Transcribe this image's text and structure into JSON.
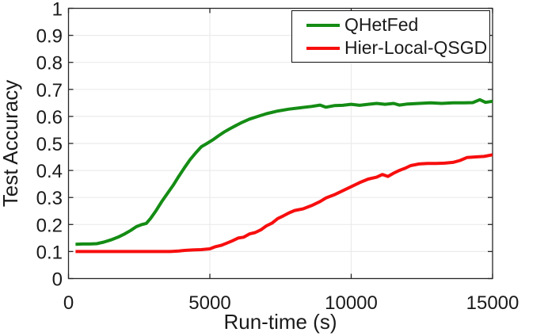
{
  "figure": {
    "background": "#ffffff",
    "axis_color": "#262626",
    "grid_color": "#ebebeb",
    "text_color": "#1a1a1a"
  },
  "chart_data": {
    "type": "line",
    "title": "",
    "xlabel": "Run-time (s)",
    "ylabel": "Test Accuracy",
    "xlim": [
      0,
      15000
    ],
    "ylim": [
      0,
      1
    ],
    "xticks": [
      0,
      5000,
      10000,
      15000
    ],
    "yticks": [
      0,
      0.1,
      0.2,
      0.3,
      0.4,
      0.5,
      0.6,
      0.7,
      0.8,
      0.9,
      1
    ],
    "grid": true,
    "legend_position": "northeast",
    "series": [
      {
        "name": "QHetFed",
        "color": "#148c14",
        "x": [
          250,
          500,
          750,
          1000,
          1250,
          1500,
          1750,
          2000,
          2200,
          2400,
          2600,
          2750,
          2900,
          3100,
          3300,
          3500,
          3700,
          3900,
          4100,
          4300,
          4500,
          4700,
          4900,
          5100,
          5300,
          5500,
          5700,
          5900,
          6100,
          6400,
          6700,
          7000,
          7400,
          7800,
          8200,
          8600,
          8900,
          9100,
          9400,
          9700,
          10000,
          10300,
          10600,
          10900,
          11200,
          11500,
          11700,
          12000,
          12400,
          12800,
          13200,
          13600,
          14000,
          14300,
          14550,
          14750,
          15000
        ],
        "y": [
          0.127,
          0.128,
          0.128,
          0.129,
          0.135,
          0.143,
          0.153,
          0.166,
          0.178,
          0.192,
          0.2,
          0.204,
          0.222,
          0.252,
          0.285,
          0.315,
          0.345,
          0.378,
          0.41,
          0.44,
          0.465,
          0.488,
          0.5,
          0.513,
          0.528,
          0.542,
          0.554,
          0.565,
          0.576,
          0.59,
          0.6,
          0.61,
          0.62,
          0.627,
          0.632,
          0.637,
          0.642,
          0.634,
          0.64,
          0.641,
          0.645,
          0.641,
          0.645,
          0.648,
          0.645,
          0.648,
          0.642,
          0.646,
          0.648,
          0.65,
          0.648,
          0.65,
          0.65,
          0.651,
          0.662,
          0.652,
          0.656
        ]
      },
      {
        "name": "Hier-Local-QSGD",
        "color": "#f70e0e",
        "x": [
          250,
          1000,
          2000,
          3000,
          3600,
          3900,
          4100,
          4400,
          4700,
          5000,
          5200,
          5400,
          5600,
          5800,
          6000,
          6200,
          6400,
          6600,
          6800,
          7000,
          7200,
          7400,
          7600,
          7800,
          8000,
          8300,
          8600,
          8900,
          9100,
          9400,
          9700,
          10000,
          10300,
          10600,
          10900,
          11100,
          11300,
          11500,
          11700,
          11900,
          12100,
          12400,
          12700,
          13000,
          13300,
          13600,
          13850,
          14100,
          14400,
          14700,
          15000
        ],
        "y": [
          0.1,
          0.1,
          0.1,
          0.1,
          0.1,
          0.102,
          0.104,
          0.106,
          0.107,
          0.11,
          0.118,
          0.123,
          0.131,
          0.14,
          0.15,
          0.153,
          0.165,
          0.17,
          0.18,
          0.195,
          0.205,
          0.222,
          0.232,
          0.243,
          0.252,
          0.258,
          0.27,
          0.285,
          0.298,
          0.31,
          0.325,
          0.34,
          0.355,
          0.368,
          0.375,
          0.385,
          0.378,
          0.39,
          0.4,
          0.408,
          0.418,
          0.424,
          0.426,
          0.426,
          0.427,
          0.43,
          0.437,
          0.448,
          0.45,
          0.452,
          0.458
        ]
      }
    ]
  }
}
